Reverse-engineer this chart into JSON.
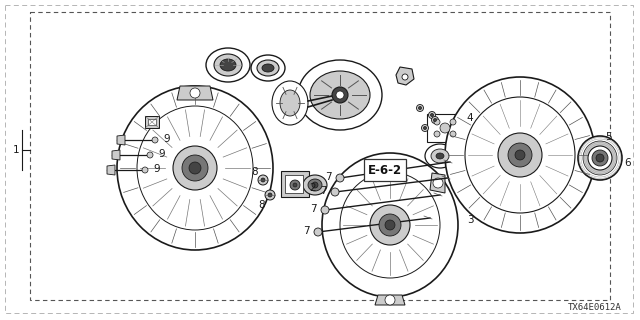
{
  "background_color": "#ffffff",
  "diagram_code": "TX64E0612A",
  "ref_label": "E-6-2",
  "border_dash": [
    4,
    3
  ],
  "outer_border_dash": [
    6,
    4
  ],
  "font_size_labels": 7.5,
  "font_size_ref": 8.5,
  "font_size_code": 6.5,
  "color_part": "#1a1a1a",
  "color_light": "#888888",
  "color_mid": "#555555",
  "color_fill_dark": "#444444",
  "color_fill_mid": "#777777",
  "color_fill_light": "#aaaaaa",
  "color_fill_xlight": "#cccccc",
  "color_white": "#ffffff"
}
